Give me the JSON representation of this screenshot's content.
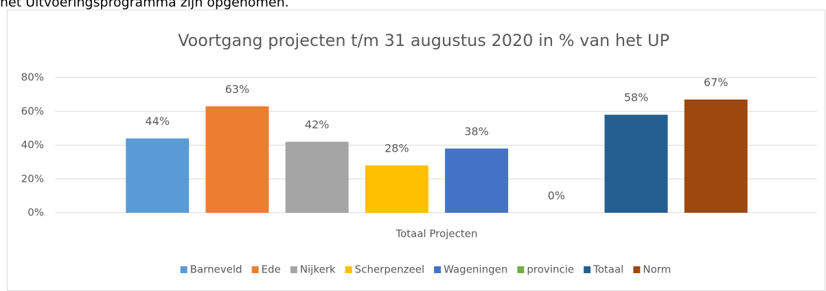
{
  "intro_text": "het Uitvoeringsprogramma zijn opgenomen.",
  "chart_data": {
    "type": "bar",
    "title": "Voortgang projecten t/m 31 augustus 2020 in % van het UP",
    "categories": [
      "Totaal Projecten"
    ],
    "series": [
      {
        "name": "Barneveld",
        "color": "#5b9bd5",
        "values": [
          44
        ],
        "value_labels": [
          "44%"
        ]
      },
      {
        "name": "Ede",
        "color": "#ed7d31",
        "values": [
          63
        ],
        "value_labels": [
          "63%"
        ]
      },
      {
        "name": "Nijkerk",
        "color": "#a5a5a5",
        "values": [
          42
        ],
        "value_labels": [
          "42%"
        ]
      },
      {
        "name": "Scherpenzeel",
        "color": "#ffc000",
        "values": [
          28
        ],
        "value_labels": [
          "28%"
        ]
      },
      {
        "name": "Wageningen",
        "color": "#4472c4",
        "values": [
          38
        ],
        "value_labels": [
          "38%"
        ]
      },
      {
        "name": "provincie",
        "color": "#70ad47",
        "values": [
          0
        ],
        "value_labels": [
          "0%"
        ]
      },
      {
        "name": "Totaal",
        "color": "#255e91",
        "values": [
          58
        ],
        "value_labels": [
          "58%"
        ]
      },
      {
        "name": "Norm",
        "color": "#9e480e",
        "values": [
          67
        ],
        "value_labels": [
          "67%"
        ]
      }
    ],
    "ylim": [
      0,
      80
    ],
    "yticks": [
      {
        "value": 0,
        "label": "0%"
      },
      {
        "value": 20,
        "label": "20%"
      },
      {
        "value": 40,
        "label": "40%"
      },
      {
        "value": 60,
        "label": "60%"
      },
      {
        "value": 80,
        "label": "80%"
      }
    ],
    "grid": true,
    "legend": "bottom"
  }
}
